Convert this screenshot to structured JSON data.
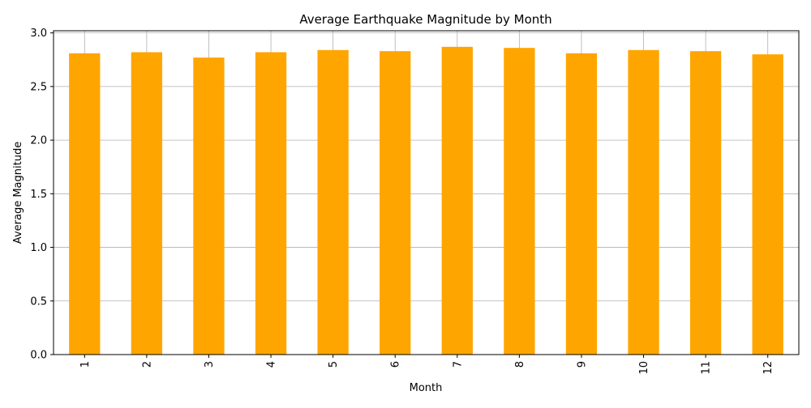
{
  "chart_data": {
    "type": "bar",
    "title": "Average Earthquake Magnitude by Month",
    "xlabel": "Month",
    "ylabel": "Average Magnitude",
    "categories": [
      "1",
      "2",
      "3",
      "4",
      "5",
      "6",
      "7",
      "8",
      "9",
      "10",
      "11",
      "12"
    ],
    "values": [
      2.81,
      2.82,
      2.77,
      2.82,
      2.84,
      2.83,
      2.87,
      2.86,
      2.81,
      2.84,
      2.83,
      2.8
    ],
    "ylim": [
      0,
      3.02
    ],
    "yticks": [
      0.0,
      0.5,
      1.0,
      1.5,
      2.0,
      2.5,
      3.0
    ],
    "ytick_labels": [
      "0.0",
      "0.5",
      "1.0",
      "1.5",
      "2.0",
      "2.5",
      "3.0"
    ],
    "grid": true,
    "legend": "none",
    "bar_color": "#ffa500",
    "grid_color": "#b0b0b0",
    "xtick_rotation": "vertical"
  }
}
